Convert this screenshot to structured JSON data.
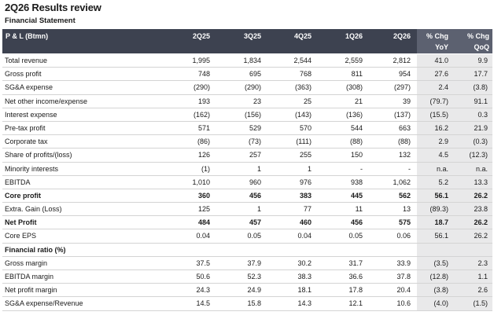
{
  "title": "2Q26 Results review",
  "subtitle": "Financial Statement",
  "header": {
    "label": "P & L (Btmn)",
    "periods": [
      "2Q25",
      "3Q25",
      "4Q25",
      "1Q26",
      "2Q26"
    ],
    "chg_yoy": [
      "% Chg",
      "YoY"
    ],
    "chg_qoq": [
      "% Chg",
      "QoQ"
    ]
  },
  "rows": [
    {
      "label": "Total revenue",
      "values": [
        "1,995",
        "1,834",
        "2,544",
        "2,559",
        "2,812"
      ],
      "yoy": "41.0",
      "qoq": "9.9"
    },
    {
      "label": "Gross profit",
      "values": [
        "748",
        "695",
        "768",
        "811",
        "954"
      ],
      "yoy": "27.6",
      "qoq": "17.7"
    },
    {
      "label": "SG&A expense",
      "values": [
        "(290)",
        "(290)",
        "(363)",
        "(308)",
        "(297)"
      ],
      "yoy": "2.4",
      "qoq": "(3.8)"
    },
    {
      "label": "Net other income/expense",
      "values": [
        "193",
        "23",
        "25",
        "21",
        "39"
      ],
      "yoy": "(79.7)",
      "qoq": "91.1"
    },
    {
      "label": "Interest expense",
      "values": [
        "(162)",
        "(156)",
        "(143)",
        "(136)",
        "(137)"
      ],
      "yoy": "(15.5)",
      "qoq": "0.3"
    },
    {
      "label": "Pre-tax profit",
      "values": [
        "571",
        "529",
        "570",
        "544",
        "663"
      ],
      "yoy": "16.2",
      "qoq": "21.9"
    },
    {
      "label": "Corporate tax",
      "values": [
        "(86)",
        "(73)",
        "(111)",
        "(88)",
        "(88)"
      ],
      "yoy": "2.9",
      "qoq": "(0.3)"
    },
    {
      "label": "Share of profits/(loss)",
      "values": [
        "126",
        "257",
        "255",
        "150",
        "132"
      ],
      "yoy": "4.5",
      "qoq": "(12.3)"
    },
    {
      "label": "Minority interests",
      "values": [
        "(1)",
        "1",
        "1",
        "-",
        "-"
      ],
      "yoy": "n.a.",
      "qoq": "n.a."
    },
    {
      "label": "EBITDA",
      "values": [
        "1,010",
        "960",
        "976",
        "938",
        "1,062"
      ],
      "yoy": "5.2",
      "qoq": "13.3"
    },
    {
      "label": "Core profit",
      "values": [
        "360",
        "456",
        "383",
        "445",
        "562"
      ],
      "yoy": "56.1",
      "qoq": "26.2",
      "bold": true
    },
    {
      "label": "Extra. Gain (Loss)",
      "values": [
        "125",
        "1",
        "77",
        "11",
        "13"
      ],
      "yoy": "(89.3)",
      "qoq": "23.8"
    },
    {
      "label": "Net Profit",
      "values": [
        "484",
        "457",
        "460",
        "456",
        "575"
      ],
      "yoy": "18.7",
      "qoq": "26.2",
      "bold": true
    },
    {
      "label": "Core EPS",
      "values": [
        "0.04",
        "0.05",
        "0.04",
        "0.05",
        "0.06"
      ],
      "yoy": "56.1",
      "qoq": "26.2"
    },
    {
      "label": "Financial ratio (%)",
      "values": [
        "",
        "",
        "",
        "",
        ""
      ],
      "yoy": "",
      "qoq": "",
      "section": true
    },
    {
      "label": "Gross margin",
      "values": [
        "37.5",
        "37.9",
        "30.2",
        "31.7",
        "33.9"
      ],
      "yoy": "(3.5)",
      "qoq": "2.3"
    },
    {
      "label": "EBITDA margin",
      "values": [
        "50.6",
        "52.3",
        "38.3",
        "36.6",
        "37.8"
      ],
      "yoy": "(12.8)",
      "qoq": "1.1"
    },
    {
      "label": "Net profit margin",
      "values": [
        "24.3",
        "24.9",
        "18.1",
        "17.8",
        "20.4"
      ],
      "yoy": "(3.8)",
      "qoq": "2.6"
    },
    {
      "label": "SG&A expense/Revenue",
      "values": [
        "14.5",
        "15.8",
        "14.3",
        "12.1",
        "10.6"
      ],
      "yoy": "(4.0)",
      "qoq": "(1.5)"
    }
  ]
}
